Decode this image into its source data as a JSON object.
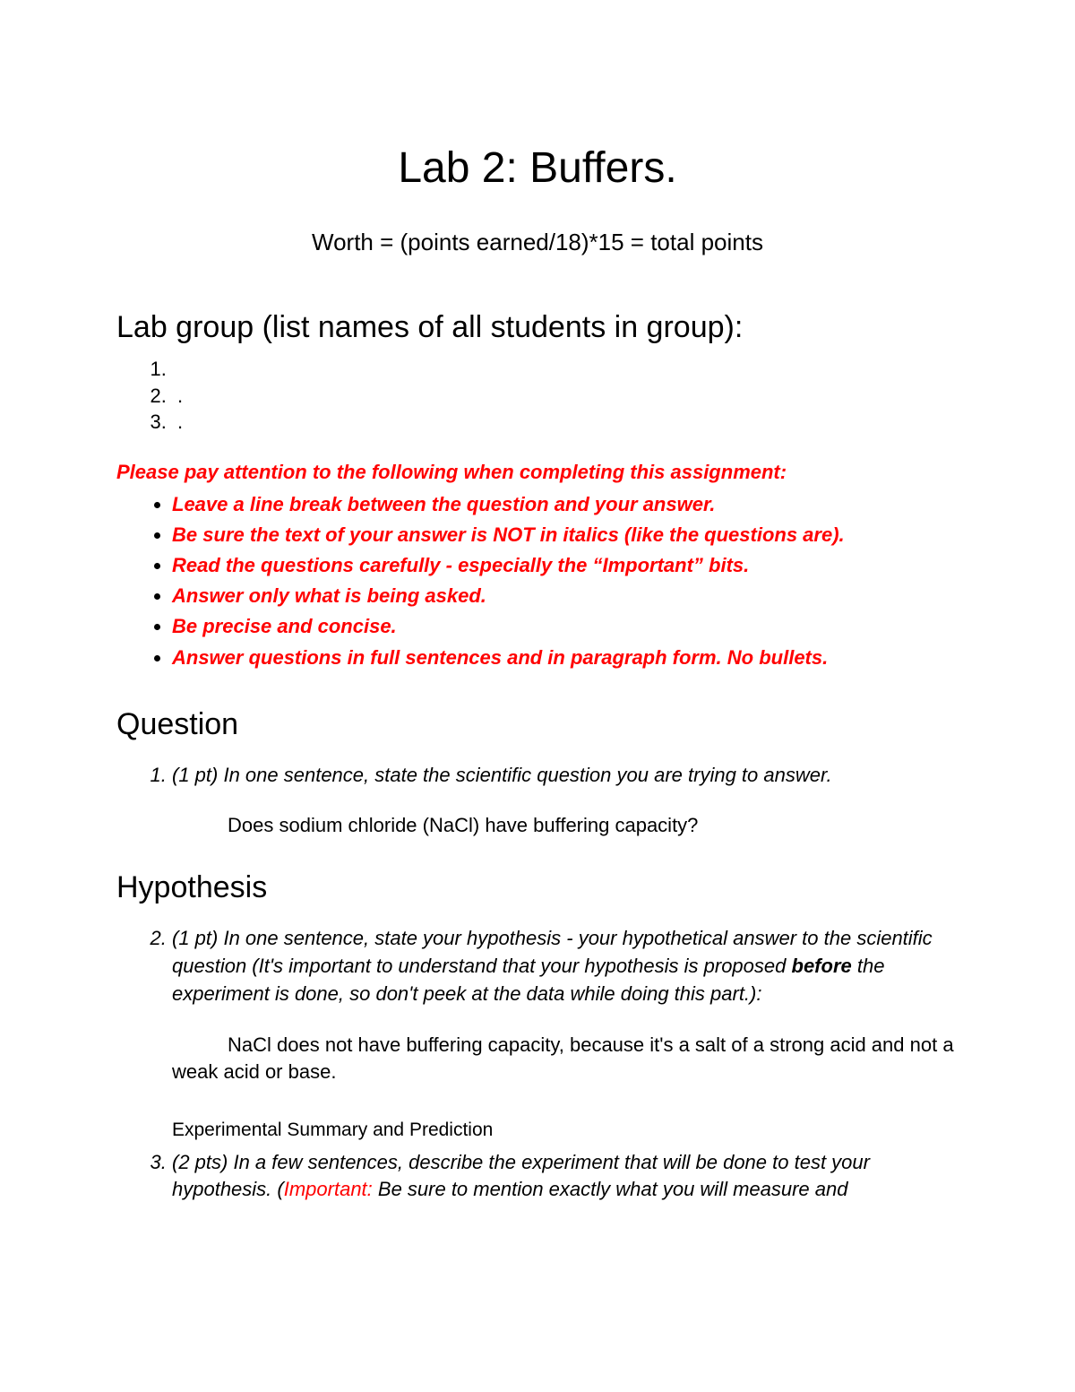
{
  "title": "Lab 2: Buffers.",
  "subtitle": "Worth = (points earned/18)*15 = total points",
  "labgroup": {
    "heading": "Lab group (list names of all students in group):",
    "items": [
      "",
      ".",
      "."
    ]
  },
  "instructions": {
    "intro": "Please pay attention to the following when completing this assignment:",
    "bullets": [
      "Leave a line break between the question and your answer.",
      "Be sure the text of your answer is NOT in italics (like the questions are).",
      "Read the questions carefully - especially the “Important” bits.",
      "Answer only what is being asked.",
      "Be precise and concise.",
      "Answer questions in full sentences and in paragraph form.  No bullets."
    ]
  },
  "question": {
    "heading": "Question",
    "q1_prompt": "(1 pt) In one sentence, state the scientific question you are trying to answer.",
    "q1_answer": "Does sodium chloride (NaCl) have buffering capacity?"
  },
  "hypothesis": {
    "heading": "Hypothesis",
    "q2_prefix": "(1 pt) In one sentence, state your hypothesis - your hypothetical answer to the scientific question  (It's important to understand that your hypothesis is proposed ",
    "q2_bold": "before",
    "q2_suffix": " the experiment is done, so don't peek at the data while doing this part.):",
    "q2_answer": "NaCl does not have buffering capacity, because it's a salt of a strong acid and not a weak acid or base.",
    "exp_sub": "Experimental Summary and Prediction",
    "q3_prefix": "(2 pts) In a few sentences, describe the experiment that will be done to test your hypothesis.  (",
    "q3_red": "Important:",
    "q3_suffix": " Be sure to mention exactly what you will measure and"
  },
  "colors": {
    "red": "#ff0000",
    "text": "#000000",
    "background": "#ffffff"
  }
}
